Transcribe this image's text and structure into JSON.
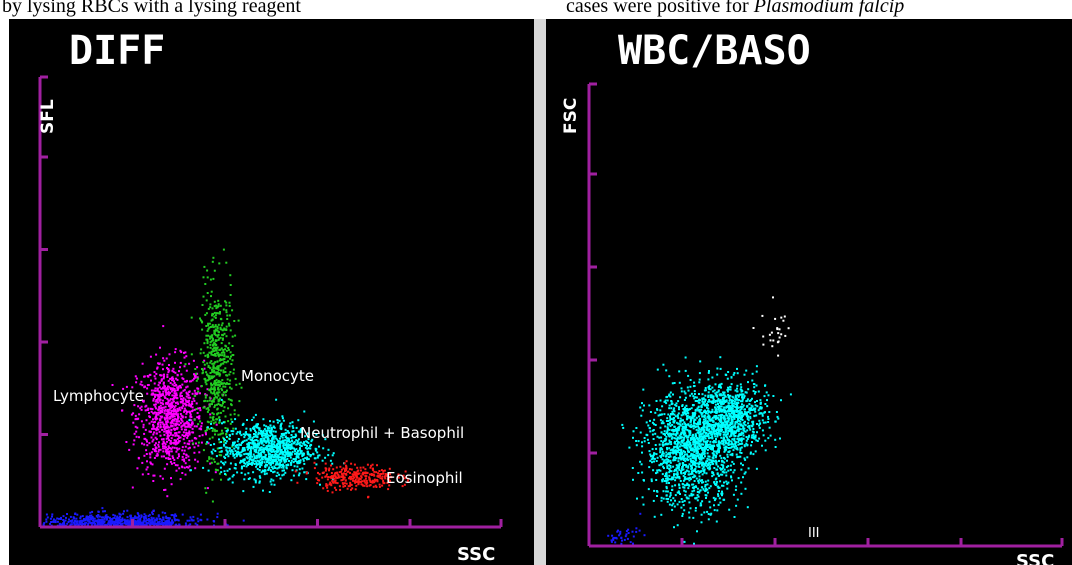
{
  "header_text": {
    "left": "by  lysing  RBCs  with  a  lysing  reagent",
    "right_prefix": "cases were positive for ",
    "right_italic": "Plasmodium falcip"
  },
  "colors": {
    "axis": "#a020a0",
    "lymphocyte": "#ff00ff",
    "monocyte": "#22cc22",
    "neutrophil": "#00ffff",
    "eosinophil": "#ff1a1a",
    "debris": "#1a1aff",
    "ghost": "#ffffff"
  },
  "chart_data": [
    {
      "type": "scatter",
      "title": "DIFF",
      "xlabel": "SSC",
      "ylabel": "SFL",
      "grid": false,
      "clusters": [
        {
          "name": "Lymphocyte",
          "color": "#ff00ff",
          "center": [
            1.4,
            1.2
          ],
          "spread": [
            0.18,
            0.3
          ],
          "count": 900
        },
        {
          "name": "Monocyte",
          "color": "#22cc22",
          "center": [
            1.9,
            1.7
          ],
          "spread": [
            0.09,
            0.45
          ],
          "count": 550
        },
        {
          "name": "Neutrophil + Basophil",
          "color": "#00ffff",
          "center": [
            2.45,
            0.85
          ],
          "spread": [
            0.25,
            0.15
          ],
          "count": 1000
        },
        {
          "name": "Eosinophil",
          "color": "#ff1a1a",
          "center": [
            3.4,
            0.55
          ],
          "spread": [
            0.22,
            0.07
          ],
          "count": 300
        },
        {
          "name": "",
          "color": "#1a1aff",
          "center": [
            0.85,
            0.05
          ],
          "spread": [
            0.45,
            0.05
          ],
          "count": 800
        }
      ],
      "annotations": [
        {
          "text": "Lymphocyte"
        },
        {
          "text": "Monocyte"
        },
        {
          "text": "Neutrophil + Basophil"
        },
        {
          "text": "Eosinophil"
        }
      ]
    },
    {
      "type": "scatter",
      "title": "WBC/BASO",
      "xlabel": "SSC",
      "ylabel": "FSC",
      "grid": false,
      "clusters": [
        {
          "name": "",
          "color": "#00ffff",
          "center": [
            1.1,
            1.05
          ],
          "spread": [
            0.25,
            0.3
          ],
          "count": 1500
        },
        {
          "name": "",
          "color": "#00ffff",
          "center": [
            1.5,
            1.4
          ],
          "spread": [
            0.2,
            0.2
          ],
          "count": 800
        },
        {
          "name": "",
          "color": "#ffffff",
          "center": [
            2.0,
            2.3
          ],
          "spread": [
            0.08,
            0.15
          ],
          "count": 25
        },
        {
          "name": "",
          "color": "#1a1aff",
          "center": [
            0.35,
            0.1
          ],
          "spread": [
            0.1,
            0.06
          ],
          "count": 40
        }
      ],
      "annotations": [
        {
          "text": "III"
        }
      ]
    }
  ]
}
